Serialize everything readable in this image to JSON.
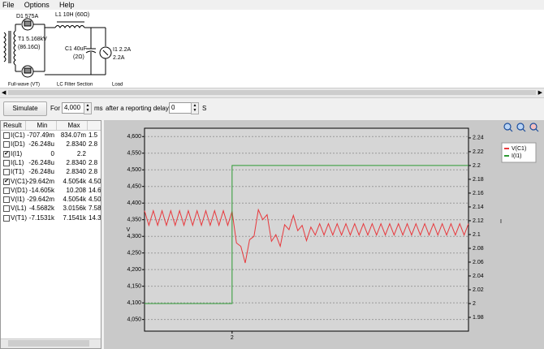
{
  "menu": [
    "File",
    "Options",
    "Help"
  ],
  "schematic": {
    "labels": [
      "D1 575A",
      "L1 10H (60Ω)",
      "T1 5.168kV",
      "(86.16Ω)",
      "C1 40uF",
      "(2Ω)",
      "I1 2.2A",
      "2.2A",
      "Full-wave (VT)",
      "LC Filter Section",
      "Load"
    ]
  },
  "toolbar": {
    "button": "Simulate",
    "for_label": "For",
    "duration": "4,000",
    "duration_unit": "ms",
    "delay_label": "after a reporting delay of",
    "delay": "0",
    "delay_unit": "S"
  },
  "results_table": {
    "headers": [
      "Result",
      "Min",
      "Max"
    ],
    "rows": [
      {
        "checked": false,
        "cells": [
          "I(C1)",
          "-707.49m",
          "834.07m",
          "1.5"
        ]
      },
      {
        "checked": false,
        "cells": [
          "I(D1)",
          "-26.248u",
          "2.8340",
          "2.8"
        ]
      },
      {
        "checked": true,
        "cells": [
          "I(I1)",
          "0",
          "2.2"
        ]
      },
      {
        "checked": false,
        "cells": [
          "I(L1)",
          "-26.248u",
          "2.8340",
          "2.8"
        ]
      },
      {
        "checked": false,
        "cells": [
          "I(T1)",
          "-26.248u",
          "2.8340",
          "2.8"
        ]
      },
      {
        "checked": true,
        "cells": [
          "V(C1)",
          "-29.642m",
          "4.5054k",
          "4.50"
        ]
      },
      {
        "checked": false,
        "cells": [
          "V(D1)",
          "-14.605k",
          "10.208",
          "14.6"
        ]
      },
      {
        "checked": false,
        "cells": [
          "V(I1)",
          "-29.642m",
          "4.5054k",
          "4.50"
        ]
      },
      {
        "checked": false,
        "cells": [
          "V(L1)",
          "-4.5682k",
          "3.0156k",
          "7.58"
        ]
      },
      {
        "checked": false,
        "cells": [
          "V(T1)",
          "-7.1531k",
          "7.1541k",
          "14.3"
        ]
      }
    ]
  },
  "chart_data": {
    "type": "line",
    "y_label": "V",
    "y2_label": "I",
    "grid": true,
    "legend": "top-right",
    "xlim": [
      1.5,
      3.35
    ],
    "xticks": [
      2
    ],
    "ylim": [
      4015,
      4625
    ],
    "yticks": [
      {
        "value": 4050,
        "label": "4,050"
      },
      {
        "value": 4100,
        "label": "4,100"
      },
      {
        "value": 4150,
        "label": "4,150"
      },
      {
        "value": 4200,
        "label": "4,200"
      },
      {
        "value": 4250,
        "label": "4,250"
      },
      {
        "value": 4300,
        "label": "4,300"
      },
      {
        "value": 4350,
        "label": "4,350"
      },
      {
        "value": 4400,
        "label": "4,400"
      },
      {
        "value": 4450,
        "label": "4,450"
      },
      {
        "value": 4500,
        "label": "4,500"
      },
      {
        "value": 4550,
        "label": "4,550"
      },
      {
        "value": 4600,
        "label": "4,600"
      }
    ],
    "y2lim": [
      1.96,
      2.254
    ],
    "y2ticks": [
      1.98,
      2,
      2.02,
      2.04,
      2.06,
      2.08,
      2.1,
      2.12,
      2.14,
      2.16,
      2.18,
      2.2,
      2.22,
      2.24
    ],
    "series": [
      {
        "name": "V(C1)",
        "color": "#e8383c",
        "x": [
          1.5,
          1.525,
          1.55,
          1.575,
          1.6,
          1.625,
          1.65,
          1.675,
          1.7,
          1.725,
          1.75,
          1.775,
          1.8,
          1.825,
          1.85,
          1.875,
          1.9,
          1.925,
          1.95,
          1.975,
          2,
          2.025,
          2.05,
          2.075,
          2.1,
          2.125,
          2.15,
          2.175,
          2.2,
          2.225,
          2.25,
          2.275,
          2.3,
          2.325,
          2.35,
          2.375,
          2.4,
          2.425,
          2.45,
          2.475,
          2.5,
          2.525,
          2.55,
          2.575,
          2.6,
          2.625,
          2.65,
          2.675,
          2.7,
          2.725,
          2.75,
          2.775,
          2.8,
          2.825,
          2.85,
          2.875,
          2.9,
          2.925,
          2.95,
          2.975,
          3,
          3.025,
          3.05,
          3.075,
          3.1,
          3.125,
          3.15,
          3.175,
          3.2,
          3.225,
          3.25,
          3.275,
          3.3,
          3.325,
          3.35
        ],
        "values": [
          4377,
          4333,
          4377,
          4333,
          4377,
          4333,
          4377,
          4333,
          4377,
          4333,
          4377,
          4333,
          4377,
          4333,
          4377,
          4333,
          4377,
          4333,
          4377,
          4333,
          4375,
          4280,
          4270,
          4220,
          4290,
          4300,
          4380,
          4350,
          4365,
          4285,
          4305,
          4270,
          4335,
          4320,
          4363,
          4317,
          4333,
          4287,
          4328,
          4304,
          4338,
          4304,
          4338,
          4304,
          4338,
          4304,
          4338,
          4304,
          4338,
          4304,
          4338,
          4304,
          4338,
          4304,
          4338,
          4304,
          4338,
          4304,
          4338,
          4304,
          4338,
          4304,
          4338,
          4304,
          4338,
          4304,
          4338,
          4304,
          4338,
          4304,
          4338,
          4304,
          4338,
          4304,
          4338
        ]
      },
      {
        "name": "I(I1)",
        "color": "#2e9a34",
        "axis": "y2",
        "x": [
          1.5,
          2,
          2,
          3.35
        ],
        "values": [
          2,
          2,
          2.2,
          2.2
        ]
      }
    ]
  }
}
